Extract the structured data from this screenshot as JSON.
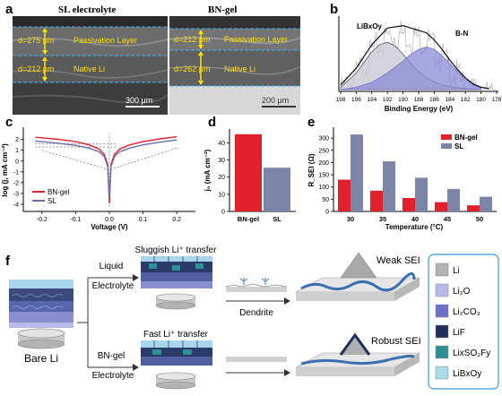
{
  "panels": {
    "a": {
      "label": "a",
      "left": {
        "title": "SL electrolyte",
        "passivation_label": "Passivation Layer",
        "native_label": "Native Li",
        "d_passivation": "d=275 μm",
        "d_native": "d=212 μm",
        "scale": "300 μm"
      },
      "right": {
        "title": "BN-gel",
        "passivation_label": "Passivation Layer",
        "native_label": "Native Li",
        "d_passivation": "d=212 μm",
        "d_native": "d=262 μm",
        "scale": "200 μm"
      }
    },
    "b": {
      "label": "b",
      "annot_lib": "LiBxOy",
      "annot_bn": "B-N",
      "xlabel": "Binding Energy (eV)",
      "xticks": [
        "198",
        "196",
        "194",
        "192",
        "190",
        "188",
        "186",
        "184",
        "182",
        "180",
        "178"
      ]
    },
    "c": {
      "label": "c",
      "ylabel": "log (j, mA cm⁻²)",
      "xlabel": "Voltage (V)",
      "xticks": [
        "-0.2",
        "-0.1",
        "0.0",
        "0.1",
        "0.2"
      ],
      "yticks": [
        "2",
        "1",
        "0",
        "-1",
        "-2",
        "-3",
        "-4"
      ],
      "legend": [
        "BN-gel",
        "SL"
      ]
    },
    "d": {
      "label": "d",
      "ylabel": "j₀ (mA cm⁻²)",
      "yticks": [
        "40",
        "30",
        "20",
        "10",
        "0"
      ],
      "categories": [
        "BN-gel",
        "SL"
      ]
    },
    "e": {
      "label": "e",
      "ylabel": "R_SEI (Ω)",
      "xlabel": "Temperature (°C)",
      "xticks": [
        "30",
        "35",
        "40",
        "45",
        "50"
      ],
      "yticks": [
        "300",
        "250",
        "200",
        "150",
        "100",
        "50",
        "0"
      ],
      "legend": [
        "BN-gel",
        "SL"
      ]
    },
    "f": {
      "label": "f",
      "bare_li": "Bare Li",
      "liquid": "Liquid",
      "electrolyte_top": "Electrolyte",
      "bn_gel": "BN-gel",
      "electrolyte_bottom": "Electrolyte",
      "sluggish": "Sluggish Li⁺ transfer",
      "fast": "Fast Li⁺ transfer",
      "dendrite": "Dendrite",
      "weak_sei": "Weak SEI",
      "robust_sei": "Robust SEI",
      "legend": [
        {
          "name": "Li",
          "color": "#b3b3b3"
        },
        {
          "name": "Li₂O",
          "color": "#b7b9e6"
        },
        {
          "name": "Li₂CO₃",
          "color": "#6b70c8"
        },
        {
          "name": "LiF",
          "color": "#1f2f5c"
        },
        {
          "name": "LixSO₂Fy",
          "color": "#2f8f96"
        },
        {
          "name": "LiBxOy",
          "color": "#a9d9ea"
        }
      ]
    }
  },
  "chart_data": [
    {
      "panel": "b",
      "type": "line",
      "title": "",
      "xlabel": "Binding Energy (eV)",
      "xlim": [
        198,
        178
      ],
      "reversed_x": true,
      "series": [
        {
          "name": "LiBxOy",
          "color": "#555555",
          "x": [
            198,
            196,
            194,
            193,
            192,
            191,
            190,
            189,
            188,
            187,
            186,
            185,
            184,
            183,
            182,
            181,
            180
          ],
          "y": [
            0.05,
            0.35,
            0.8,
            0.95,
            1.0,
            0.92,
            0.75,
            0.55,
            0.38,
            0.25,
            0.16,
            0.1,
            0.06,
            0.04,
            0.02,
            0.01,
            0.0
          ]
        },
        {
          "name": "B-N",
          "color": "#6f6fc8",
          "x": [
            198,
            196,
            194,
            192,
            190,
            189,
            188,
            187,
            186,
            185,
            184,
            183,
            182,
            181,
            180
          ],
          "y": [
            0.0,
            0.05,
            0.15,
            0.35,
            0.6,
            0.75,
            0.85,
            0.9,
            0.85,
            0.72,
            0.55,
            0.38,
            0.22,
            0.1,
            0.03
          ]
        },
        {
          "name": "envelope",
          "color": "#111111",
          "x": [
            198,
            196,
            194,
            192,
            190,
            189,
            188,
            187,
            186,
            185,
            184,
            183,
            182,
            181,
            180,
            179
          ],
          "y": [
            0.1,
            0.45,
            0.95,
            1.3,
            1.35,
            1.3,
            1.25,
            1.2,
            1.05,
            0.85,
            0.62,
            0.42,
            0.25,
            0.12,
            0.05,
            0.02
          ]
        }
      ]
    },
    {
      "panel": "c",
      "type": "line",
      "title": "",
      "xlabel": "Voltage (V)",
      "ylabel": "log (j, mA cm⁻²)",
      "xlim": [
        -0.25,
        0.25
      ],
      "ylim": [
        -4.5,
        2.8
      ],
      "series": [
        {
          "name": "BN-gel",
          "color": "#e0202a",
          "x": [
            -0.22,
            -0.2,
            -0.15,
            -0.1,
            -0.06,
            -0.03,
            -0.015,
            -0.005,
            0.0,
            0.005,
            0.015,
            0.03,
            0.06,
            0.1,
            0.15,
            0.2
          ],
          "y": [
            2.2,
            2.15,
            2.0,
            1.8,
            1.5,
            1.1,
            0.6,
            -0.3,
            -3.9,
            -0.3,
            0.6,
            1.1,
            1.5,
            1.8,
            2.05,
            2.25
          ]
        },
        {
          "name": "SL",
          "color": "#6b6fa8",
          "x": [
            -0.22,
            -0.2,
            -0.15,
            -0.1,
            -0.06,
            -0.03,
            -0.015,
            -0.005,
            0.0,
            0.005,
            0.015,
            0.03,
            0.06,
            0.1,
            0.15,
            0.2
          ],
          "y": [
            1.85,
            1.8,
            1.65,
            1.45,
            1.2,
            0.85,
            0.4,
            -0.5,
            -3.4,
            -0.5,
            0.4,
            0.85,
            1.2,
            1.5,
            1.75,
            1.95
          ]
        }
      ]
    },
    {
      "panel": "d",
      "type": "bar",
      "title": "",
      "ylabel": "j₀ (mA cm⁻²)",
      "categories": [
        "BN-gel",
        "SL"
      ],
      "values": [
        45,
        25.5
      ],
      "colors": [
        "#e0202a",
        "#7a85a8"
      ],
      "ylim": [
        0,
        47
      ]
    },
    {
      "panel": "e",
      "type": "bar",
      "title": "",
      "xlabel": "Temperature (°C)",
      "ylabel": "R_SEI (Ω)",
      "categories": [
        "30",
        "35",
        "40",
        "45",
        "50"
      ],
      "series": [
        {
          "name": "BN-gel",
          "color": "#e0202a",
          "values": [
            130,
            85,
            55,
            38,
            25
          ]
        },
        {
          "name": "SL",
          "color": "#7a85a8",
          "values": [
            315,
            205,
            138,
            92,
            60
          ]
        }
      ],
      "ylim": [
        0,
        330
      ]
    }
  ]
}
